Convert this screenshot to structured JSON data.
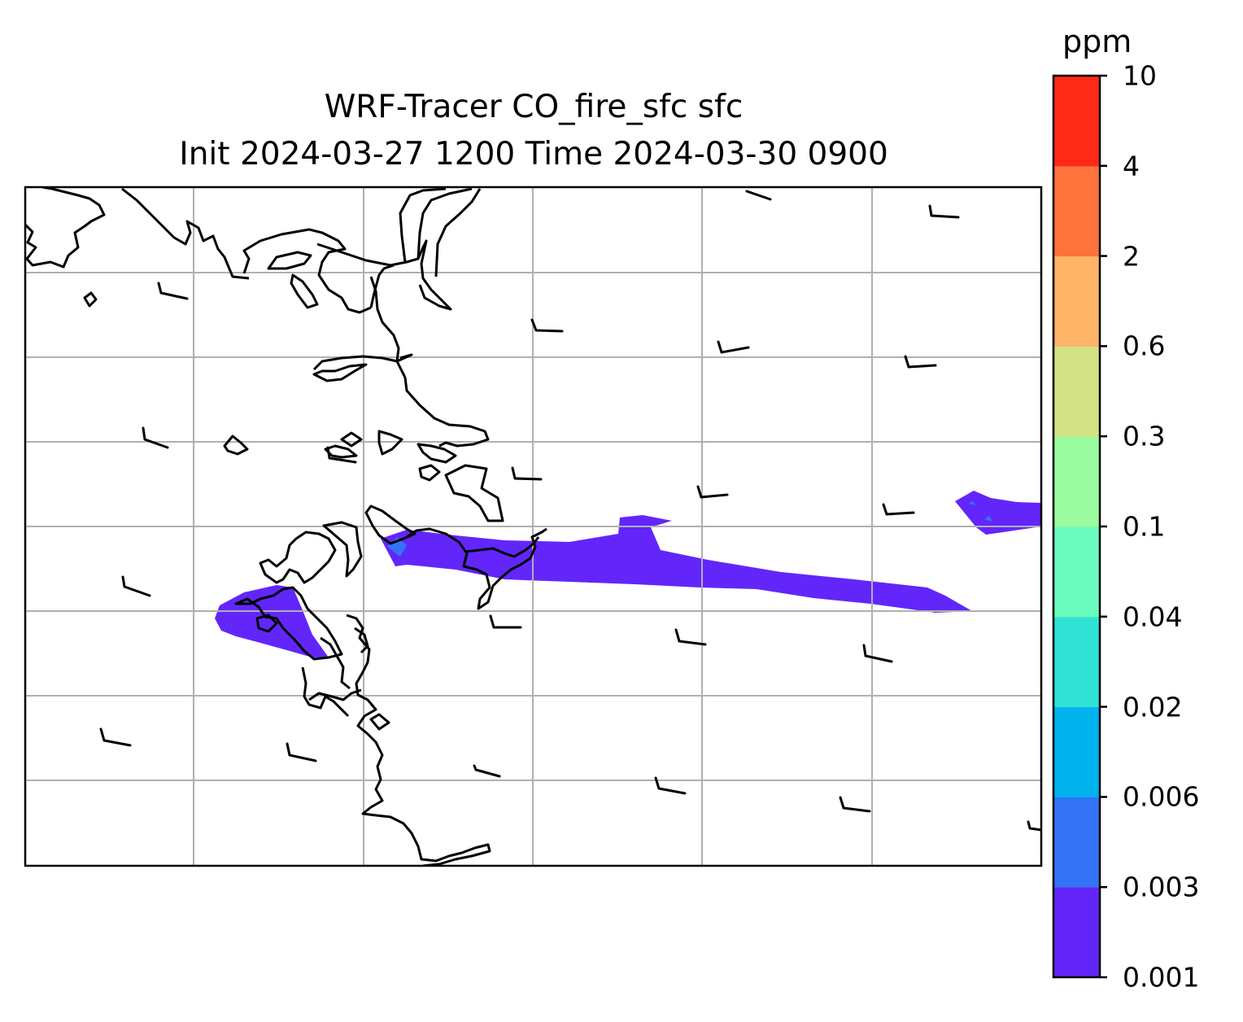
{
  "title": {
    "line1": "WRF-Tracer CO_fire_sfc sfc",
    "line2": "Init 2024-03-27 1200 Time 2024-03-30 0900"
  },
  "colorbar": {
    "units": "ppm",
    "levels": [
      "0.001",
      "0.003",
      "0.006",
      "0.02",
      "0.04",
      "0.1",
      "0.3",
      "0.6",
      "2",
      "4",
      "10"
    ],
    "colors": [
      "#6226fb",
      "#3473f5",
      "#00b3ee",
      "#31e2d6",
      "#6afcbe",
      "#9afc9e",
      "#d2e285",
      "#feb466",
      "#fe723b",
      "#fe2a17"
    ]
  },
  "chart_data": {
    "type": "map",
    "field": "CO_fire_sfc",
    "units": "ppm",
    "contour_levels": [
      0.001,
      0.003,
      0.006,
      0.02,
      0.04,
      0.1,
      0.3,
      0.6,
      2,
      4,
      10
    ],
    "max_category_shown": "0.003-0.006",
    "gridlines": true,
    "wind_barbs": true,
    "coastlines": true
  }
}
